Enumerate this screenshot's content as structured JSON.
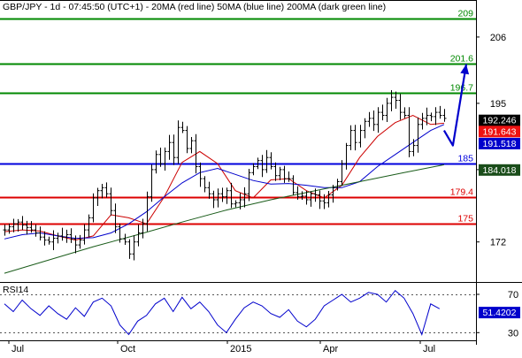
{
  "chart_data": {
    "type": "line",
    "title": "GBP/JPY - 1d - 07:45:50 (UTC+1) - 20MA (red line) 50MA (blue line) 200MA (dark green line)",
    "x_tick_labels": [
      "Jul",
      "Oct",
      "2015",
      "Apr",
      "Jul"
    ],
    "price_axis": {
      "ylim": [
        165.5,
        212
      ],
      "tick_labels": [
        "206",
        "195",
        "184",
        "172"
      ],
      "tick_values": [
        206,
        195,
        184,
        172
      ]
    },
    "price_series": {
      "name": "GBP/JPY",
      "style": "bars",
      "color": "#000000",
      "x": [
        0,
        5,
        10,
        15,
        20,
        25,
        30,
        35,
        40,
        45,
        50,
        55,
        60,
        65,
        70,
        75,
        80,
        85,
        90,
        95,
        100,
        105,
        110,
        115,
        120,
        125,
        130,
        135,
        140,
        145,
        150,
        155,
        160,
        165,
        170,
        175,
        180,
        185,
        190,
        195,
        200,
        205,
        210,
        215,
        220,
        225,
        230,
        235,
        240,
        245,
        250,
        255,
        260,
        265,
        270,
        275,
        280,
        285,
        290,
        295,
        300,
        305,
        310,
        315,
        320,
        325,
        330,
        335,
        340,
        345,
        350,
        355,
        360,
        365,
        370,
        375,
        380,
        385,
        390,
        395,
        400,
        405,
        410,
        415,
        420,
        425,
        430,
        435,
        440,
        445,
        450,
        455,
        460,
        465,
        470,
        475,
        480,
        485,
        490,
        495
      ],
      "close": [
        174.0,
        174.5,
        175.0,
        175.3,
        174.8,
        174.4,
        174.0,
        173.5,
        172.8,
        172.3,
        172.0,
        172.6,
        173.0,
        172.8,
        173.2,
        172.5,
        171.5,
        172.3,
        174.0,
        176.0,
        179.3,
        180.5,
        181.0,
        180.0,
        177.2,
        174.5,
        172.5,
        172.0,
        170.0,
        172.0,
        173.5,
        175.0,
        179.5,
        184.0,
        186.5,
        185.0,
        187.0,
        188.5,
        186.0,
        191.0,
        190.5,
        187.5,
        188.8,
        184.5,
        182.5,
        181.0,
        180.0,
        179.0,
        180.0,
        179.5,
        180.5,
        178.3,
        178.5,
        179.0,
        180.0,
        183.5,
        184.5,
        185.5,
        184.0,
        186.0,
        184.5,
        183.0,
        184.0,
        182.5,
        182.5,
        180.2,
        179.5,
        179.6,
        179.0,
        180.0,
        179.8,
        178.8,
        178.5,
        179.8,
        181.0,
        182.0,
        185.0,
        188.0,
        190.5,
        188.5,
        190.5,
        192.0,
        192.5,
        191.5,
        193.5,
        193.0,
        195.0,
        196.0,
        195.5,
        193.5,
        193.0,
        187.0,
        188.0,
        191.5,
        192.5,
        193.0,
        192.8,
        193.5,
        193.0,
        192.5
      ]
    },
    "moving_averages": [
      {
        "name": "20MA",
        "color": "#cc0000",
        "x": [
          0,
          20,
          40,
          60,
          80,
          100,
          120,
          140,
          160,
          180,
          200,
          220,
          240,
          260,
          280,
          300,
          320,
          340,
          360,
          380,
          400,
          420,
          440,
          460,
          480,
          495
        ],
        "y": [
          173.7,
          174.0,
          173.8,
          173.0,
          172.3,
          173.0,
          176.5,
          176.0,
          175.0,
          179.5,
          185.2,
          187.0,
          185.0,
          180.5,
          179.3,
          182.3,
          182.5,
          180.5,
          179.3,
          181.4,
          186.0,
          189.5,
          191.8,
          193.0,
          191.5,
          191.7
        ]
      },
      {
        "name": "50MA",
        "color": "#0000cc",
        "x": [
          0,
          20,
          40,
          60,
          80,
          100,
          120,
          140,
          160,
          180,
          200,
          220,
          240,
          260,
          280,
          300,
          320,
          340,
          360,
          380,
          400,
          420,
          440,
          460,
          480,
          495
        ],
        "y": [
          172.5,
          173.2,
          173.5,
          173.0,
          172.6,
          172.7,
          173.5,
          175.0,
          177.0,
          179.5,
          181.8,
          183.5,
          184.2,
          183.2,
          182.2,
          181.6,
          181.7,
          181.4,
          181.0,
          181.0,
          182.0,
          184.5,
          186.5,
          188.5,
          190.5,
          191.5
        ]
      },
      {
        "name": "200MA",
        "color": "#1a5c1a",
        "x": [
          0,
          50,
          100,
          150,
          200,
          250,
          300,
          350,
          400,
          450,
          495
        ],
        "y": [
          166.8,
          169.0,
          171.2,
          173.2,
          175.3,
          177.3,
          179.0,
          180.5,
          182.0,
          183.5,
          184.8
        ]
      }
    ],
    "projection": {
      "color": "#0000cc",
      "x": [
        495,
        505,
        520
      ],
      "y": [
        190.5,
        188.0,
        201.5
      ]
    },
    "horizontal_levels": [
      {
        "label": "209",
        "value": 209.0,
        "color": "#008800"
      },
      {
        "label": "201.6",
        "value": 201.6,
        "color": "#008800"
      },
      {
        "label": "196.7",
        "value": 196.7,
        "color": "#008800"
      },
      {
        "label": "185",
        "value": 185.0,
        "color": "#0000dd"
      },
      {
        "label": "179.4",
        "value": 179.4,
        "color": "#dd0000"
      },
      {
        "label": "175",
        "value": 175.0,
        "color": "#dd0000"
      }
    ],
    "price_badges": [
      {
        "label": "192.246",
        "value": 192.246,
        "bg": "#000000",
        "fg": "#ffffff"
      },
      {
        "label": "191.643",
        "value": 190.4,
        "bg": "#ee1111",
        "fg": "#ffffff"
      },
      {
        "label": "191.518",
        "value": 188.4,
        "bg": "#0000cc",
        "fg": "#ffffff"
      },
      {
        "label": "184.018",
        "value": 184.018,
        "bg": "#1a4d1a",
        "fg": "#ffffff"
      }
    ],
    "rsi": {
      "title": "RSI14",
      "ylim": [
        22,
        82
      ],
      "tick_labels": [
        "70",
        "30"
      ],
      "tick_values": [
        70,
        30
      ],
      "current_label": "51.4202",
      "current_value": 51.42,
      "x": [
        0,
        10,
        20,
        30,
        40,
        50,
        60,
        70,
        80,
        90,
        100,
        110,
        120,
        130,
        140,
        150,
        160,
        170,
        180,
        190,
        200,
        210,
        220,
        230,
        240,
        250,
        260,
        270,
        280,
        290,
        300,
        310,
        320,
        330,
        340,
        350,
        360,
        370,
        380,
        390,
        400,
        410,
        420,
        430,
        440,
        450,
        460,
        470,
        480,
        490
      ],
      "y": [
        60,
        52,
        64,
        55,
        48,
        58,
        50,
        44,
        56,
        47,
        62,
        66,
        58,
        38,
        28,
        42,
        48,
        60,
        66,
        52,
        67,
        55,
        62,
        52,
        38,
        30,
        44,
        56,
        62,
        58,
        50,
        46,
        54,
        42,
        36,
        44,
        58,
        64,
        70,
        62,
        66,
        72,
        70,
        62,
        74,
        66,
        50,
        28,
        60,
        55
      ]
    },
    "grid": false
  }
}
